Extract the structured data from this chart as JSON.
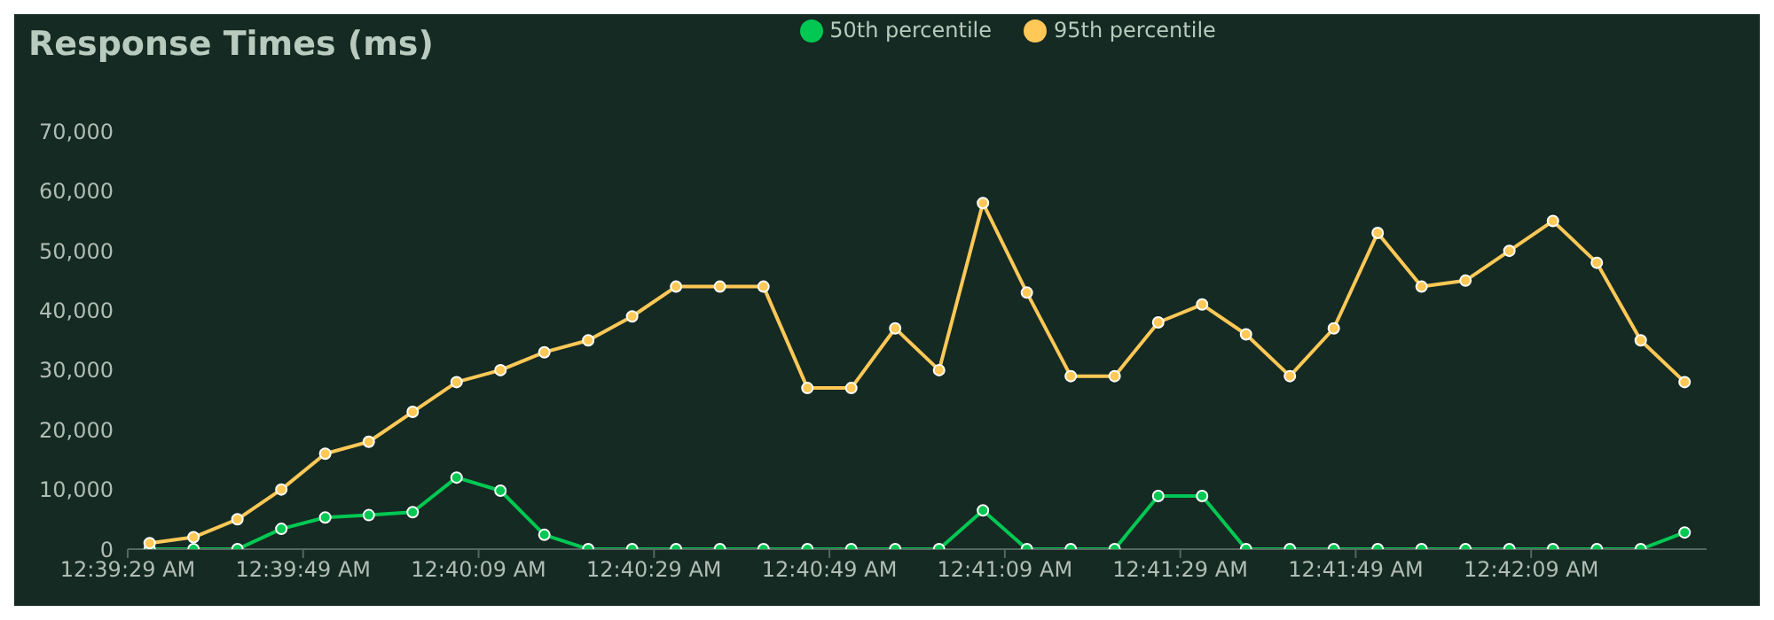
{
  "chart_data": {
    "type": "line",
    "title": "Response Times (ms)",
    "x": [
      0.65875,
      0.66014,
      0.66153,
      0.66292,
      0.66431,
      0.66569,
      0.66708,
      0.66847,
      0.66986,
      0.67125,
      0.67264,
      0.67403,
      0.67542,
      0.67681,
      0.67819,
      0.67958,
      0.68097,
      0.68236,
      0.68375,
      0.68514,
      0.68653,
      0.68792,
      0.68931,
      0.69069,
      0.69208,
      0.69347,
      0.69486,
      0.69625,
      0.69764,
      0.69903,
      0.70042,
      0.70181,
      0.70319,
      0.70458,
      0.70597,
      0.70736
    ],
    "series": [
      {
        "name": "50th percentile",
        "color": "#00c853",
        "values": [
          0,
          0,
          0,
          3400,
          5300,
          5700,
          6200,
          12000,
          9800,
          2400,
          0,
          0,
          0,
          0,
          0,
          0,
          0,
          0,
          0,
          6500,
          0,
          0,
          0,
          8900,
          8900,
          0,
          0,
          0,
          0,
          0,
          0,
          0,
          0,
          0,
          0,
          2800
        ]
      },
      {
        "name": "95th percentile",
        "color": "#ffc857",
        "values": [
          1000,
          2000,
          5000,
          10000,
          16000,
          18000,
          23000,
          28000,
          30000,
          33000,
          35000,
          39000,
          44000,
          44000,
          44000,
          27000,
          27000,
          37000,
          30000,
          58000,
          43000,
          29000,
          29000,
          38000,
          41000,
          36000,
          29000,
          37000,
          53000,
          44000,
          45000,
          50000,
          55000,
          48000,
          35000,
          28000
        ]
      }
    ],
    "xlim": [
      0.658056,
      0.708056
    ],
    "xticks": [
      {
        "value": 0.658056,
        "label": "12:39:29 AM"
      },
      {
        "value": 0.663611,
        "label": "12:39:49 AM"
      },
      {
        "value": 0.669167,
        "label": "12:40:09 AM"
      },
      {
        "value": 0.674722,
        "label": "12:40:29 AM"
      },
      {
        "value": 0.680278,
        "label": "12:40:49 AM"
      },
      {
        "value": 0.685833,
        "label": "12:41:09 AM"
      },
      {
        "value": 0.691389,
        "label": "12:41:29 AM"
      },
      {
        "value": 0.696944,
        "label": "12:41:49 AM"
      },
      {
        "value": 0.7025,
        "label": "12:42:09 AM"
      }
    ],
    "ylim": [
      0,
      70000
    ],
    "yticks": [
      0,
      {
        "value": 10000,
        "label": "10,000"
      },
      {
        "value": 20000,
        "label": "20,000"
      },
      {
        "value": 30000,
        "label": "30,000"
      },
      {
        "value": 40000,
        "label": "40,000"
      },
      {
        "value": 50000,
        "label": "50,000"
      },
      {
        "value": 60000,
        "label": "60,000"
      },
      {
        "value": 70000,
        "label": "70,000"
      }
    ],
    "grid": false,
    "legend": "top",
    "marker": "circle",
    "line_style": "solid"
  }
}
